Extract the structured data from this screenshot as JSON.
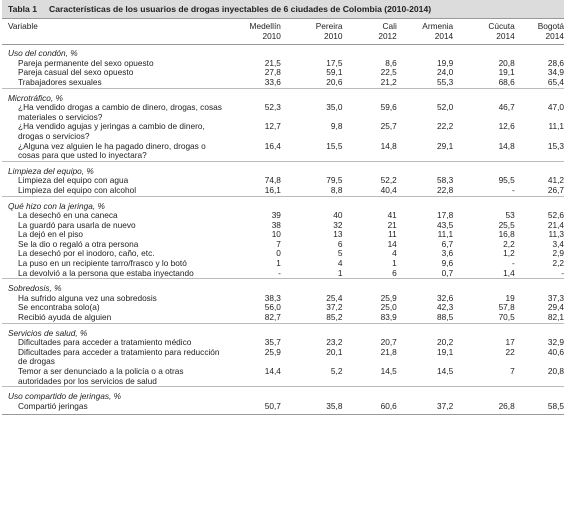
{
  "title": {
    "label": "Tabla 1",
    "text": "Características de los usuarios de drogas inyectables de 6 ciudades de Colombia (2010-2014)"
  },
  "table": {
    "variable_header": "Variable",
    "columns": [
      {
        "city": "Medellín",
        "year": "2010"
      },
      {
        "city": "Pereira",
        "year": "2010"
      },
      {
        "city": "Cali",
        "year": "2012"
      },
      {
        "city": "Armenia",
        "year": "2014"
      },
      {
        "city": "Cúcuta",
        "year": "2014"
      },
      {
        "city": "Bogotá",
        "year": "2014"
      }
    ],
    "sections": [
      {
        "title": "Uso del condón, %",
        "rows": [
          {
            "label": "Pareja permanente del sexo opuesto",
            "cells": [
              "21,5",
              "17,5",
              "8,6",
              "19,9",
              "20,8",
              "28,6"
            ]
          },
          {
            "label": "Pareja casual del sexo opuesto",
            "cells": [
              "27,8",
              "59,1",
              "22,5",
              "24,0",
              "19,1",
              "34,9"
            ]
          },
          {
            "label": "Trabajadores sexuales",
            "cells": [
              "33,6",
              "20,6",
              "21,2",
              "55,3",
              "68,6",
              "65,4"
            ]
          }
        ]
      },
      {
        "title": "Microtráfico, %",
        "rows": [
          {
            "label": "¿Ha vendido drogas a cambio de dinero, drogas, cosas materiales o servicios?",
            "cells": [
              "52,3",
              "35,0",
              "59,6",
              "52,0",
              "46,7",
              "47,0"
            ]
          },
          {
            "label": "¿Ha vendido agujas y jeringas a cambio de dinero, drogas o servicios?",
            "cells": [
              "12,7",
              "9,8",
              "25,7",
              "22,2",
              "12,6",
              "11,1"
            ]
          },
          {
            "label": "¿Alguna vez alguien le ha pagado dinero, drogas o cosas para que usted lo inyectara?",
            "cells": [
              "16,4",
              "15,5",
              "14,8",
              "29,1",
              "14,8",
              "15,3"
            ]
          }
        ]
      },
      {
        "title": "Limpieza del equipo, %",
        "rows": [
          {
            "label": "Limpieza del equipo con agua",
            "cells": [
              "74,8",
              "79,5",
              "52,2",
              "58,3",
              "95,5",
              "41,2"
            ]
          },
          {
            "label": "Limpieza del equipo con alcohol",
            "cells": [
              "16,1",
              "8,8",
              "40,4",
              "22,8",
              "-",
              "26,7"
            ]
          }
        ]
      },
      {
        "title": "Qué hizo con la jeringa, %",
        "rows": [
          {
            "label": "La desechó en una caneca",
            "cells": [
              "39",
              "40",
              "41",
              "17,8",
              "53",
              "52,6"
            ]
          },
          {
            "label": "La guardó para usarla de nuevo",
            "cells": [
              "38",
              "32",
              "21",
              "43,5",
              "25,5",
              "21,4"
            ]
          },
          {
            "label": "La dejó en el piso",
            "cells": [
              "10",
              "13",
              "11",
              "11,1",
              "16,8",
              "11,3"
            ]
          },
          {
            "label": "Se la dio o regaló a otra persona",
            "cells": [
              "7",
              "6",
              "14",
              "6,7",
              "2,2",
              "3,4"
            ]
          },
          {
            "label": "La desechó por el inodoro, caño, etc.",
            "cells": [
              "0",
              "5",
              "4",
              "3,6",
              "1,2",
              "2,9"
            ]
          },
          {
            "label": "La puso en un recipiente tarro/frasco y lo botó",
            "cells": [
              "1",
              "4",
              "1",
              "9,6",
              "-",
              "2,2"
            ]
          },
          {
            "label": "La devolvió a la persona que estaba inyectando",
            "cells": [
              "-",
              "1",
              "6",
              "0,7",
              "1,4",
              "-"
            ]
          }
        ]
      },
      {
        "title": "Sobredosis, %",
        "rows": [
          {
            "label": "Ha sufrido alguna vez una sobredosis",
            "cells": [
              "38,3",
              "25,4",
              "25,9",
              "32,6",
              "19",
              "37,3"
            ]
          },
          {
            "label": "Se encontraba solo(a)",
            "cells": [
              "56,0",
              "37,2",
              "25,0",
              "42,3",
              "57,8",
              "29,4"
            ]
          },
          {
            "label": "Recibió ayuda de alguien",
            "cells": [
              "82,7",
              "85,2",
              "83,9",
              "88,5",
              "70,5",
              "82,1"
            ]
          }
        ]
      },
      {
        "title": "Servicios de salud, %",
        "rows": [
          {
            "label": "Dificultades para acceder a tratamiento médico",
            "cells": [
              "35,7",
              "23,2",
              "20,7",
              "20,2",
              "17",
              "32,9"
            ]
          },
          {
            "label": "Dificultades para acceder a tratamiento para reducción de drogas",
            "cells": [
              "25,9",
              "20,1",
              "21,8",
              "19,1",
              "22",
              "40,6"
            ]
          },
          {
            "label": "Temor a ser denunciado a la policía o a otras autoridades por los servicios de salud",
            "cells": [
              "14,4",
              "5,2",
              "14,5",
              "14,5",
              "7",
              "20,8"
            ]
          }
        ]
      },
      {
        "title": "Uso compartido de jeringas, %",
        "rows": [
          {
            "label": "Compartió jeringas",
            "cells": [
              "50,7",
              "35,8",
              "60,6",
              "37,2",
              "26,8",
              "58,5"
            ]
          }
        ]
      }
    ]
  }
}
